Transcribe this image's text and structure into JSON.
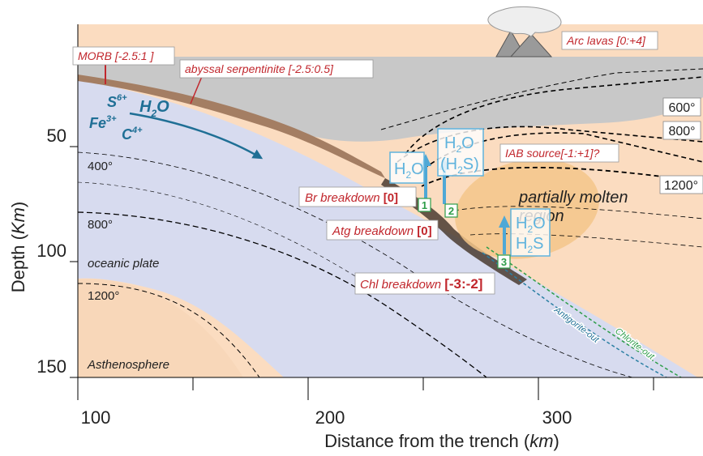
{
  "axes": {
    "x_label_main": "Distance from the trench (",
    "x_label_unit": "km",
    "x_label_close": ")",
    "x_ticks": [
      "100",
      "200",
      "300"
    ],
    "y_label_main": "Depth (",
    "y_label_unit": "Km",
    "y_label_close": ")",
    "y_ticks": [
      "50",
      "100",
      "150"
    ]
  },
  "isotherm_labels": {
    "t600": "600°",
    "t800": "800°",
    "t1200": "1200°",
    "slab400": "400°",
    "slab800": "800°",
    "slab1200": "1200°"
  },
  "region_labels": {
    "oceanic_plate": "oceanic plate",
    "asthenosphere": "Asthenosphere",
    "melt_line1": "partially molten",
    "melt_line2": "region"
  },
  "callouts": {
    "morb": "MORB [-2.5:1 ]",
    "abyssal": "abyssal serpentinite [-2.5:0.5]",
    "arc": "Arc lavas [0:+4]",
    "iab": "IAB source[-1:+1]?"
  },
  "species": {
    "s": "S",
    "s_sup": "6+",
    "fe": "Fe",
    "fe_sup": "3+",
    "c": "C",
    "c_sup": "4+",
    "h": "H",
    "h_sub": "2",
    "o": "O"
  },
  "reactions": [
    {
      "number": "1",
      "name": "Br breakdown ",
      "value": "[0]"
    },
    {
      "number": "2",
      "name": "Atg breakdown ",
      "value": "[0]"
    },
    {
      "number": "3",
      "name": "Chl breakdown ",
      "value": "[-3:-2]"
    }
  ],
  "fluid_boxes": {
    "b1_h": "H",
    "b1_sub": "2",
    "b1_o": "O",
    "b2_h": "H",
    "b2_sub": "2",
    "b2_o": "O",
    "b2_paren_open": "(H",
    "b2_sub2": "2",
    "b2_paren_close": "S)",
    "b3_h": "H",
    "b3_sub": "2",
    "b3_o": "O",
    "b3_h2": "H",
    "b3_sub2": "2",
    "b3_s": "S"
  },
  "slab_lines": {
    "chlorite": "Chlorite-out",
    "antigorite": "Antigorite-out"
  },
  "colors": {
    "mantle": "#fbdcc0",
    "slab": "#d7dbef",
    "crust": "#dcd7ea",
    "lithosphere": "#c8c8c8",
    "serpentinite": "#a47e63",
    "melt": "#f3c58a",
    "teal": "#2b7fa3",
    "box_blue": "#5fb3dd",
    "red": "#c1272d",
    "green": "#2e9d4a"
  }
}
